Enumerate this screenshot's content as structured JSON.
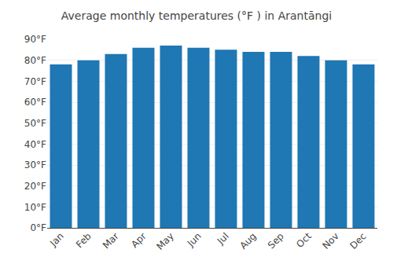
{
  "chart_data": {
    "type": "bar",
    "title": "Average monthly temperatures (°F ) in Arantāngi",
    "categories": [
      "Jan",
      "Feb",
      "Mar",
      "Apr",
      "May",
      "Jun",
      "Jul",
      "Aug",
      "Sep",
      "Oct",
      "Nov",
      "Dec"
    ],
    "values": [
      78,
      80,
      83,
      86,
      87,
      86,
      85,
      84,
      84,
      82,
      80,
      78
    ],
    "ylim": [
      0,
      90
    ],
    "yticks": [
      {
        "value": 0,
        "label": "0°F"
      },
      {
        "value": 10,
        "label": "10°F"
      },
      {
        "value": 20,
        "label": "20°F"
      },
      {
        "value": 30,
        "label": "30°F"
      },
      {
        "value": 40,
        "label": "40°F"
      },
      {
        "value": 50,
        "label": "50°F"
      },
      {
        "value": 60,
        "label": "60°F"
      },
      {
        "value": 70,
        "label": "70°F"
      },
      {
        "value": 80,
        "label": "80°F"
      },
      {
        "value": 90,
        "label": "90°F"
      }
    ],
    "grid": true
  }
}
